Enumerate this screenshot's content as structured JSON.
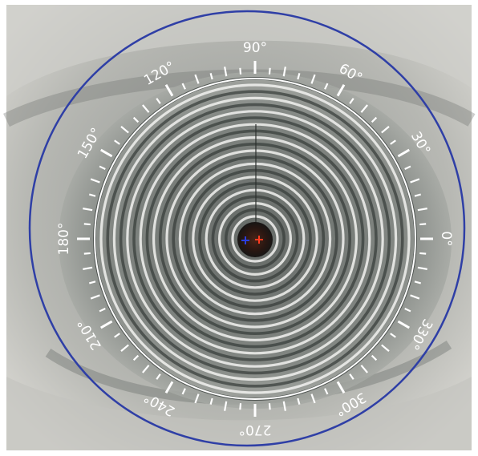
{
  "image": {
    "subject": "placido-ring-corneal-topography-capture",
    "colors": {
      "boundary_circle": "#2f3fa6",
      "scale_ring": "#ffffff",
      "rings_light": "#f2f2f0",
      "rings_dark": "#343a37",
      "pupil": "#2a1712",
      "center_marker_blue": "#2a3fe0",
      "center_marker_red": "#ff3b1f"
    }
  },
  "angle_scale": {
    "labels": [
      {
        "id": "deg-0",
        "text": "0°",
        "angle": 0
      },
      {
        "id": "deg-30",
        "text": "30°",
        "angle": 30
      },
      {
        "id": "deg-60",
        "text": "60°",
        "angle": 60
      },
      {
        "id": "deg-90",
        "text": "90°",
        "angle": 90
      },
      {
        "id": "deg-120",
        "text": "120°",
        "angle": 120
      },
      {
        "id": "deg-150",
        "text": "150°",
        "angle": 150
      },
      {
        "id": "deg-180",
        "text": "180°",
        "angle": 180
      },
      {
        "id": "deg-210",
        "text": "210°",
        "angle": 210
      },
      {
        "id": "deg-240",
        "text": "240°",
        "angle": 240
      },
      {
        "id": "deg-270",
        "text": "270°",
        "angle": 270
      },
      {
        "id": "deg-300",
        "text": "300°",
        "angle": 300
      },
      {
        "id": "deg-330",
        "text": "330°",
        "angle": 330
      }
    ],
    "tick_step_degrees": 5
  }
}
